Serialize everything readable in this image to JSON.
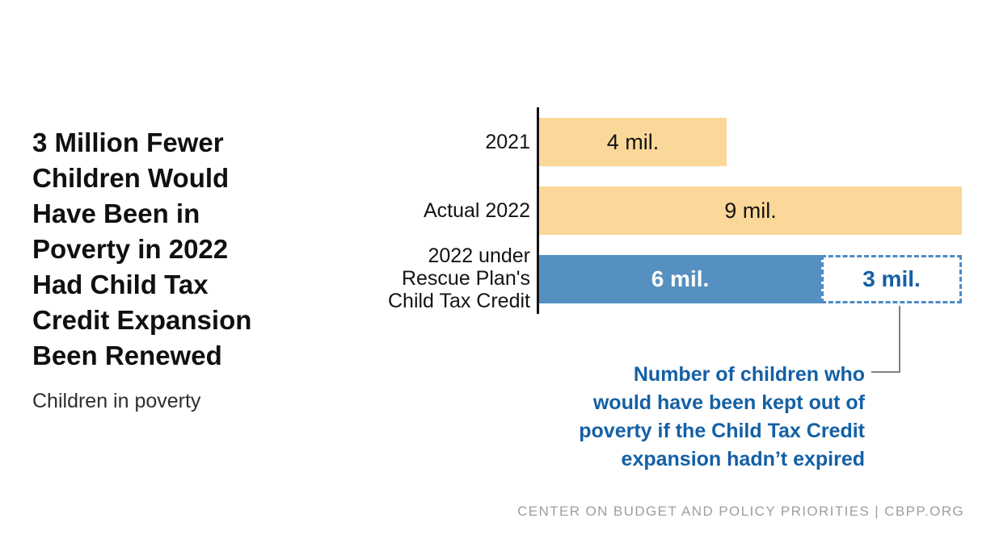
{
  "header": {
    "title": "3 Million Fewer\nChildren Would\nHave Been in\nPoverty in 2022\nHad Child Tax\nCredit Expansion\nBeen Renewed",
    "subtitle": "Children in poverty"
  },
  "chart_data": {
    "type": "bar",
    "orientation": "horizontal",
    "title": "3 Million Fewer Children Would Have Been in Poverty in 2022 Had Child Tax Credit Expansion Been Renewed",
    "subtitle_units_label": "Children in poverty",
    "unit": "millions of children",
    "xlim": [
      0,
      9
    ],
    "grid": "off",
    "legend": "none",
    "categories": [
      "2021",
      "Actual 2022",
      "2022 under Rescue Plan's Child Tax Credit"
    ],
    "rows": [
      {
        "label": "2021",
        "total": 4,
        "segments": [
          {
            "value": 4,
            "label": "4 mil.",
            "style": "solid-yellow"
          }
        ]
      },
      {
        "label": "Actual 2022",
        "total": 9,
        "segments": [
          {
            "value": 9,
            "label": "9 mil.",
            "style": "solid-yellow"
          }
        ]
      },
      {
        "label": "2022 under\nRescue Plan's\nChild Tax Credit",
        "total": 9,
        "segments": [
          {
            "value": 6,
            "label": "6 mil.",
            "style": "solid-blue"
          },
          {
            "value": 3,
            "label": "3 mil.",
            "style": "dashed-outline"
          }
        ]
      }
    ],
    "annotation": "Number of children who would have been kept out of poverty if the Child Tax Credit expansion hadn’t expired",
    "colors": {
      "bar_yellow": "#FBD899",
      "bar_blue": "#5690C1",
      "dash_blue": "#4E8BC4",
      "accent_text_blue": "#1460A5",
      "ink": "#141414",
      "callout_gray": "#808080",
      "footer_gray": "#9E9E9E"
    }
  },
  "annotation_display": {
    "text": "Number of children who\nwould have been kept out of\npoverty if the Child Tax Credit\nexpansion hadn’t expired"
  },
  "footer": {
    "credit": "CENTER ON BUDGET AND POLICY PRIORITIES | CBPP.ORG"
  }
}
